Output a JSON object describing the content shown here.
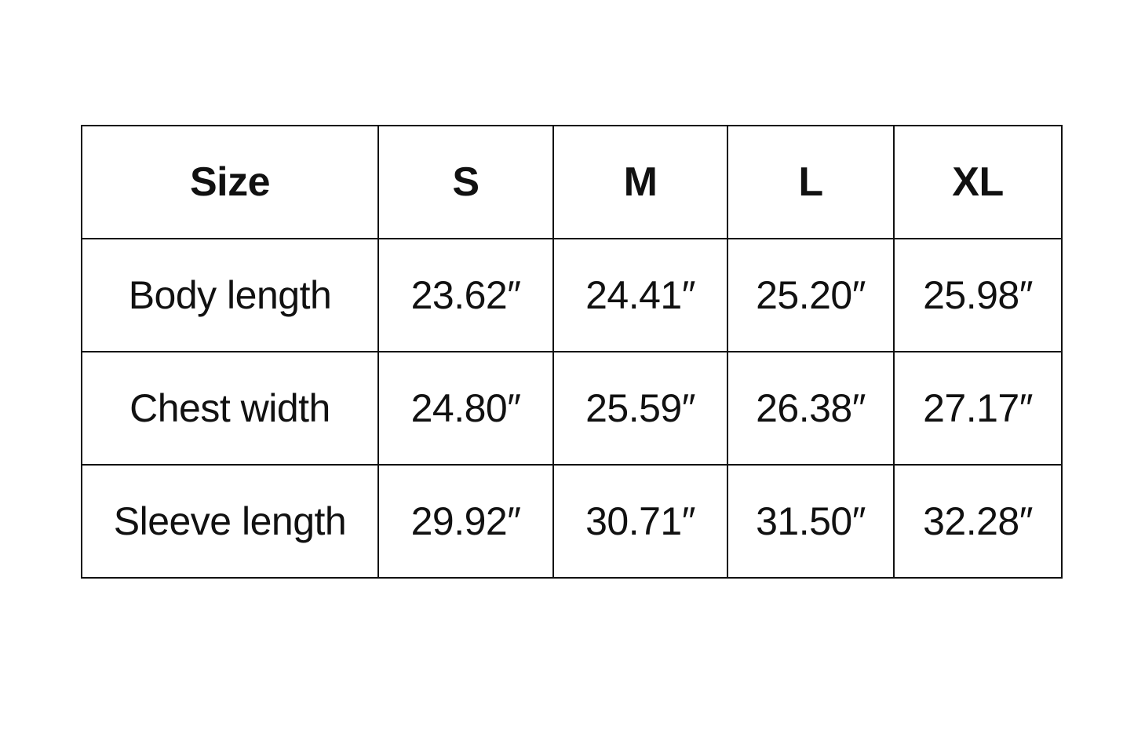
{
  "table": {
    "headers": [
      "Size",
      "S",
      "M",
      "L",
      "XL"
    ],
    "rows": [
      {
        "label": "Body length",
        "values": [
          "23.62″",
          "24.41″",
          "25.20″",
          "25.98″"
        ]
      },
      {
        "label": "Chest width",
        "values": [
          "24.80″",
          "25.59″",
          "26.38″",
          "27.17″"
        ]
      },
      {
        "label": "Sleeve length",
        "values": [
          "29.92″",
          "30.71″",
          "31.50″",
          "32.28″"
        ]
      }
    ]
  }
}
